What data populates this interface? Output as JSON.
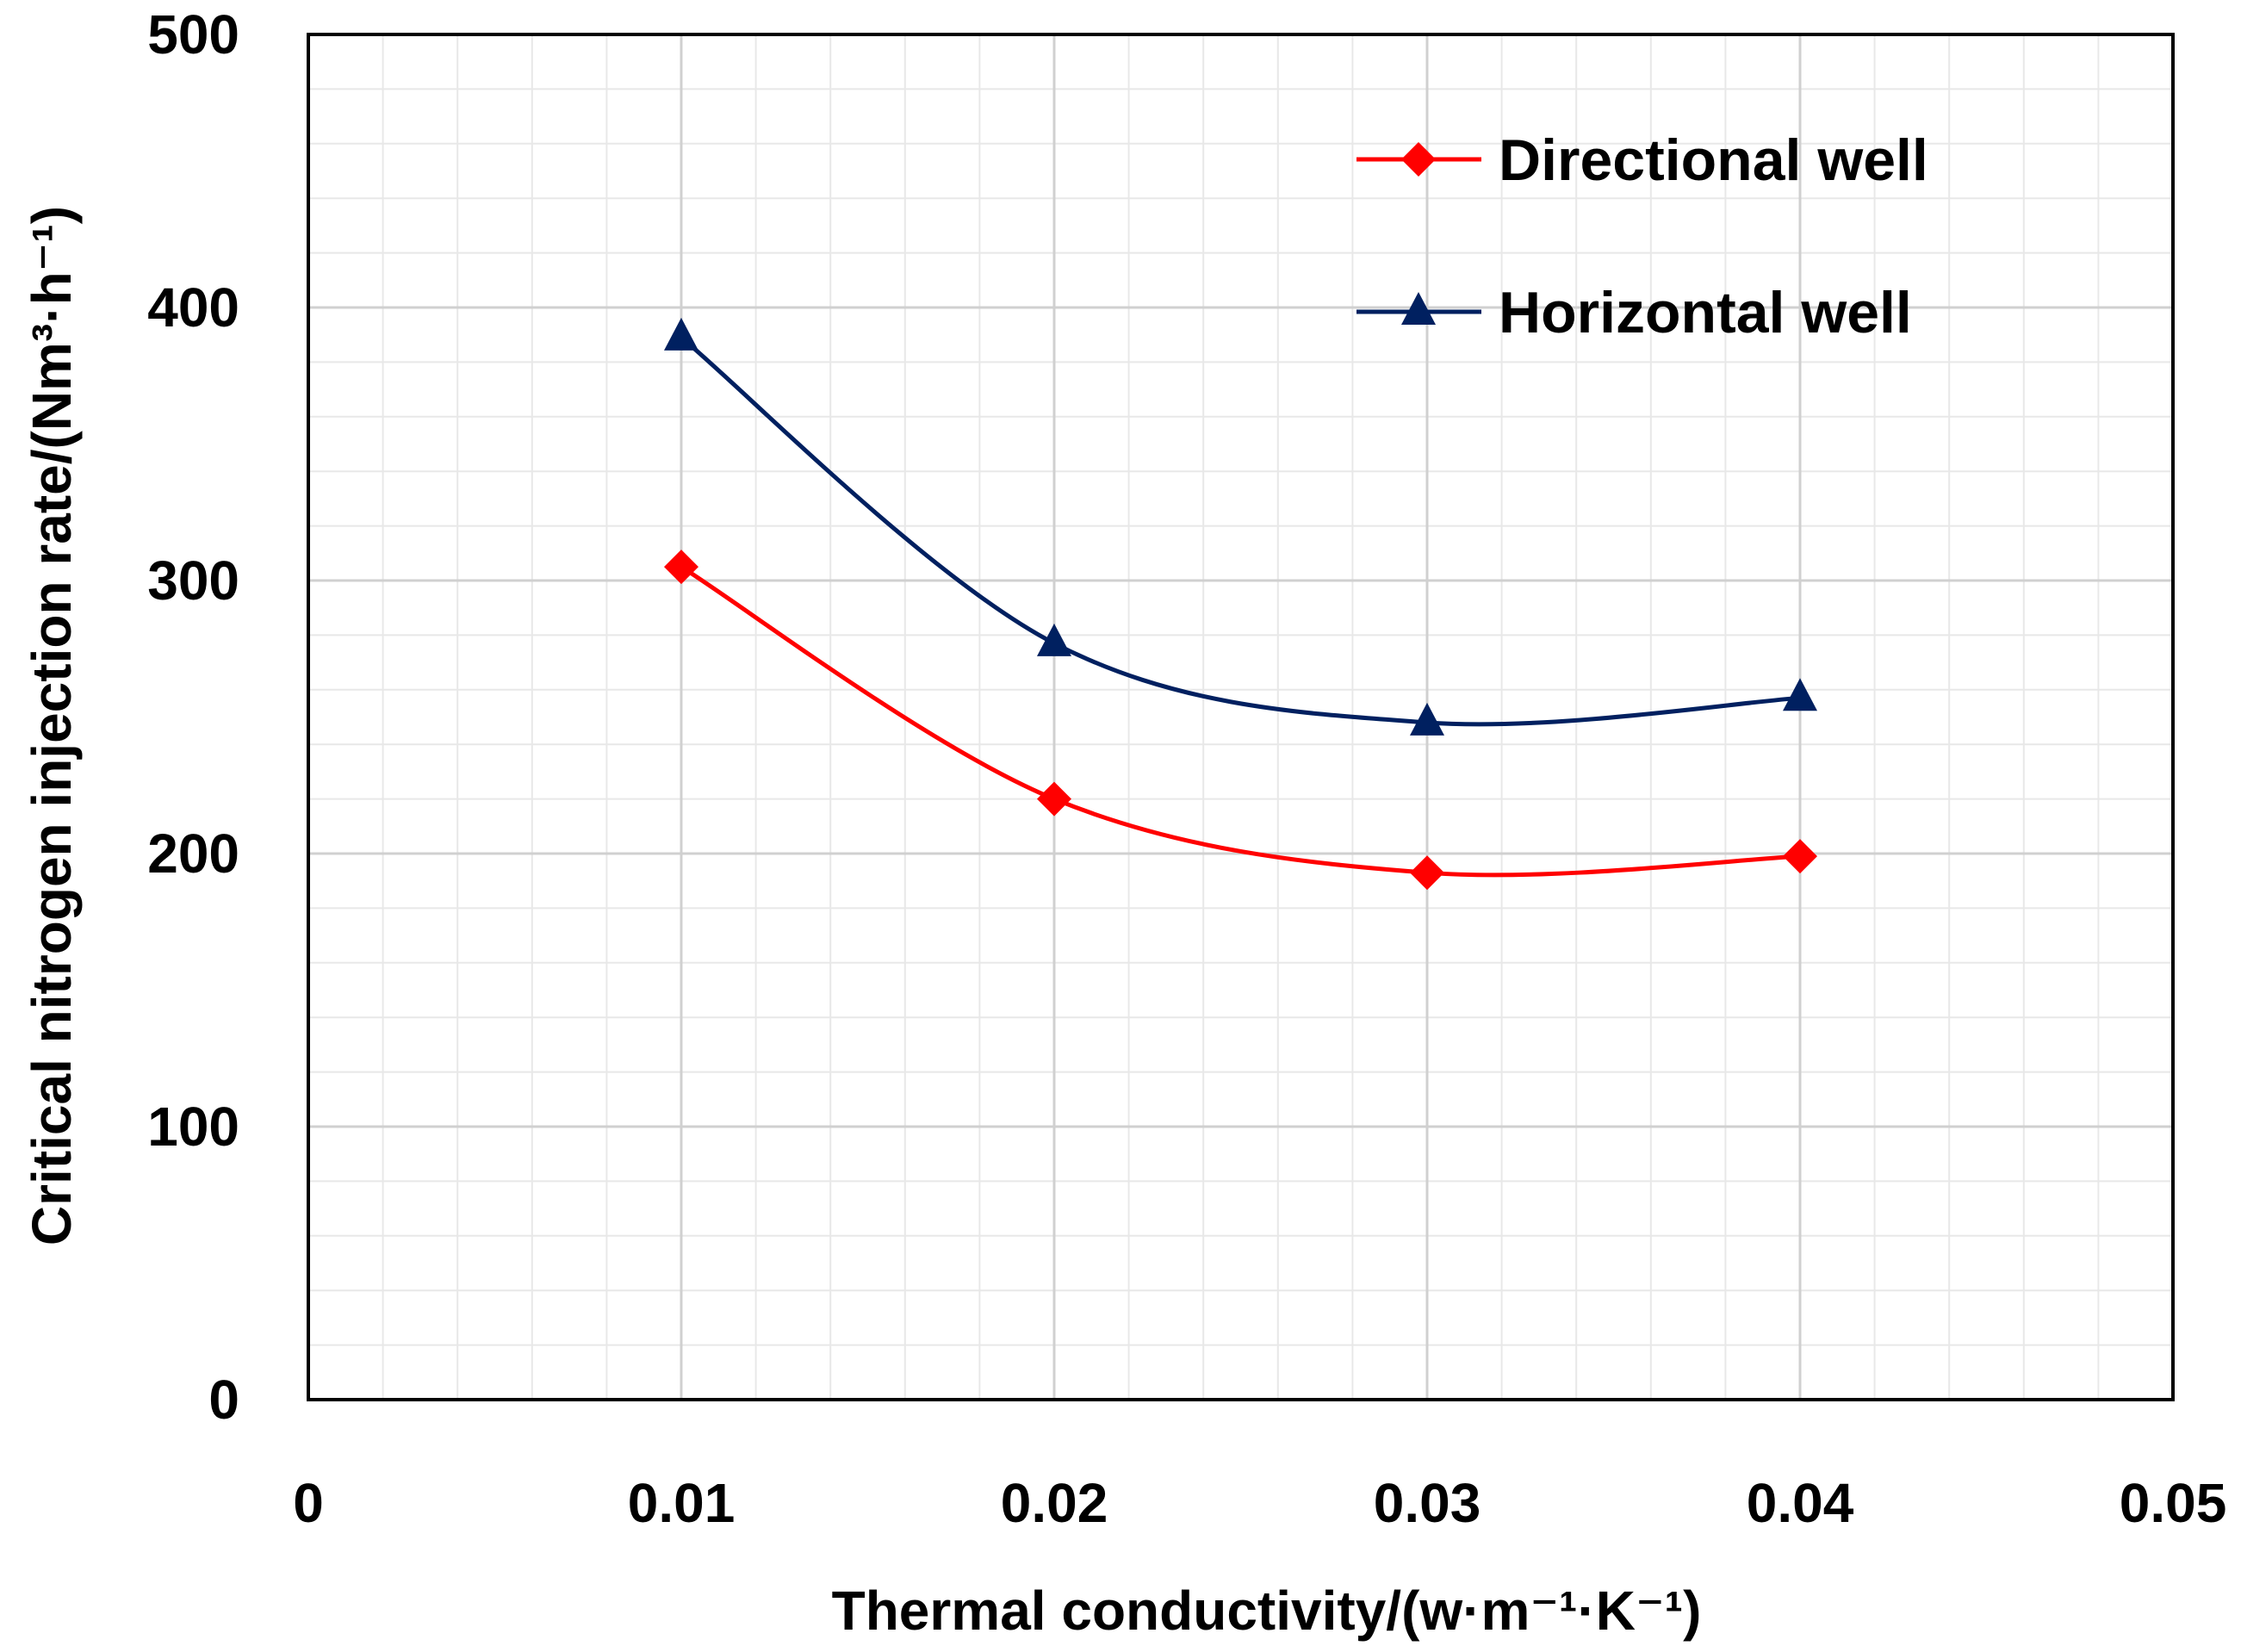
{
  "chart_data": {
    "type": "line",
    "title": "",
    "xlabel": "Thermal conductivity/(w·m⁻¹·K⁻¹)",
    "ylabel": "Critical nitrogen injection rate/(Nm³·h⁻¹)",
    "xlim": [
      0,
      0.05
    ],
    "ylim": [
      0,
      500
    ],
    "xticks": [
      "0",
      "0.01",
      "0.02",
      "0.03",
      "0.04",
      "0.05"
    ],
    "yticks": [
      "0",
      "100",
      "200",
      "300",
      "400",
      "500"
    ],
    "grid": true,
    "legend_position": "top-right",
    "smooth": true,
    "x": [
      0.01,
      0.02,
      0.03,
      0.04
    ],
    "series": [
      {
        "name": "Directional well",
        "color": "#ff0000",
        "marker": "diamond",
        "values": [
          305,
          220,
          193,
          199
        ]
      },
      {
        "name": "Horizontal well",
        "color": "#002060",
        "marker": "triangle",
        "values": [
          389,
          277,
          248,
          257
        ]
      }
    ]
  }
}
